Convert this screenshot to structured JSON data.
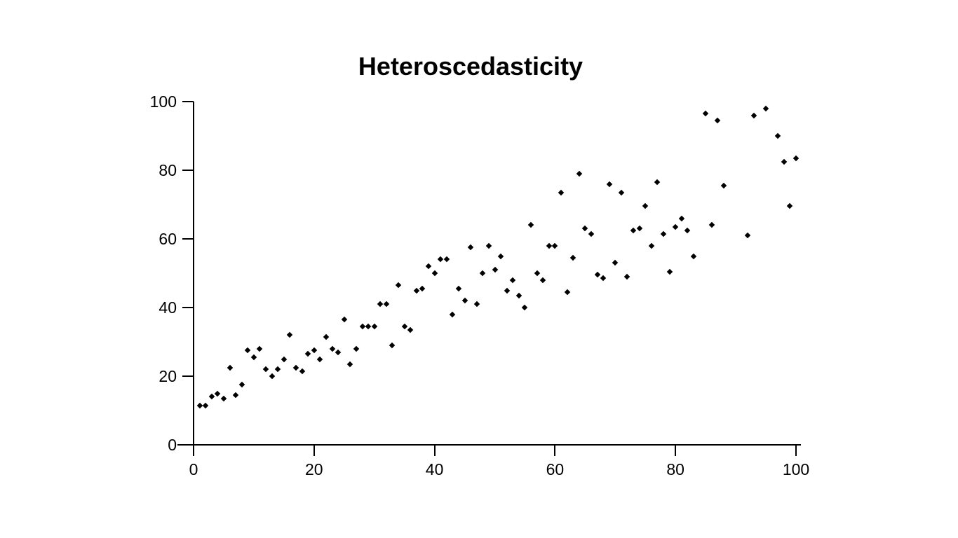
{
  "page": {
    "background_color": "#ffffff",
    "foreground_color": "#000000"
  },
  "chart_data": {
    "type": "scatter",
    "title": "Heteroscedasticity",
    "xlabel": "",
    "ylabel": "",
    "xlim": [
      0,
      100
    ],
    "ylim": [
      0,
      100
    ],
    "x_ticks": [
      0,
      20,
      40,
      60,
      80,
      100
    ],
    "y_ticks": [
      0,
      20,
      40,
      60,
      80,
      100
    ],
    "grid": false,
    "legend": null,
    "marker": "filled-diamond",
    "marker_color": "#000000",
    "axis_color": "#000000",
    "points": [
      [
        1,
        11.5
      ],
      [
        2,
        11.5
      ],
      [
        3,
        14
      ],
      [
        4,
        15
      ],
      [
        5,
        13.5
      ],
      [
        6,
        22.5
      ],
      [
        7,
        14.5
      ],
      [
        8,
        17.5
      ],
      [
        9,
        27.5
      ],
      [
        10,
        25.5
      ],
      [
        11,
        28
      ],
      [
        12,
        22
      ],
      [
        13,
        20
      ],
      [
        14,
        22
      ],
      [
        15,
        25
      ],
      [
        16,
        32
      ],
      [
        17,
        22.5
      ],
      [
        18,
        21.5
      ],
      [
        19,
        26.5
      ],
      [
        20,
        27.5
      ],
      [
        21,
        25
      ],
      [
        22,
        31.5
      ],
      [
        23,
        28
      ],
      [
        24,
        27
      ],
      [
        25,
        36.5
      ],
      [
        26,
        23.5
      ],
      [
        27,
        28
      ],
      [
        28,
        34.5
      ],
      [
        29,
        34.5
      ],
      [
        30,
        34.5
      ],
      [
        31,
        41
      ],
      [
        32,
        41
      ],
      [
        33,
        29
      ],
      [
        34,
        46.5
      ],
      [
        35,
        34.5
      ],
      [
        36,
        33.5
      ],
      [
        37,
        45
      ],
      [
        38,
        45.5
      ],
      [
        39,
        52
      ],
      [
        40,
        50
      ],
      [
        41,
        54
      ],
      [
        42,
        54
      ],
      [
        43,
        38
      ],
      [
        44,
        45.5
      ],
      [
        45,
        42
      ],
      [
        46,
        57.5
      ],
      [
        47,
        41
      ],
      [
        48,
        50
      ],
      [
        49,
        58
      ],
      [
        50,
        51
      ],
      [
        51,
        55
      ],
      [
        52,
        45
      ],
      [
        53,
        48
      ],
      [
        54,
        43.5
      ],
      [
        55,
        40
      ],
      [
        56,
        64
      ],
      [
        57,
        50
      ],
      [
        58,
        48
      ],
      [
        59,
        58
      ],
      [
        60,
        58
      ],
      [
        61,
        73.5
      ],
      [
        62,
        44.5
      ],
      [
        63,
        54.5
      ],
      [
        64,
        79
      ],
      [
        65,
        63
      ],
      [
        66,
        61.5
      ],
      [
        67,
        49.5
      ],
      [
        68,
        48.5
      ],
      [
        69,
        76
      ],
      [
        70,
        53
      ],
      [
        71,
        73.5
      ],
      [
        72,
        49
      ],
      [
        73,
        62.5
      ],
      [
        74,
        63
      ],
      [
        75,
        69.5
      ],
      [
        76,
        58
      ],
      [
        77,
        76.5
      ],
      [
        78,
        61.5
      ],
      [
        79,
        50.5
      ],
      [
        80,
        63.5
      ],
      [
        81,
        66
      ],
      [
        82,
        62.5
      ],
      [
        83,
        55
      ],
      [
        85,
        96.5
      ],
      [
        86,
        64
      ],
      [
        87,
        94.5
      ],
      [
        88,
        75.5
      ],
      [
        92,
        61
      ],
      [
        93,
        96
      ],
      [
        95,
        98
      ],
      [
        97,
        90
      ],
      [
        98,
        82.5
      ],
      [
        99,
        69.5
      ],
      [
        100,
        83.5
      ]
    ]
  }
}
